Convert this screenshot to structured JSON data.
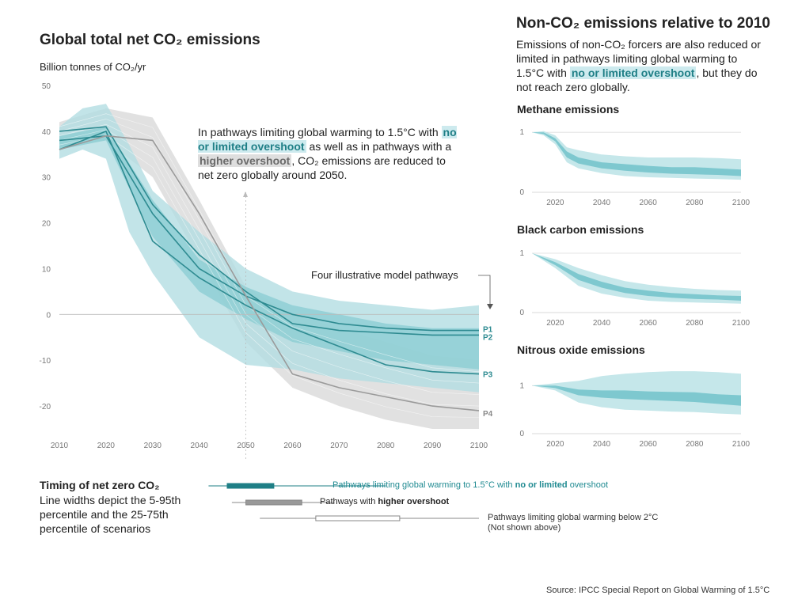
{
  "main": {
    "title": "Global total net CO₂ emissions",
    "ylabel": "Billion tonnes of CO₂/yr",
    "annotation": {
      "pre": "In pathways limiting global warming to 1.5°C with",
      "hl1": "no or limited overshoot",
      "mid": "as well as in pathways with a",
      "hl2": "higher overshoot",
      "post": ", CO₂ emissions are reduced to net zero globally around 2050."
    },
    "four_pathways": "Four illustrative model pathways"
  },
  "right": {
    "title": "Non-CO₂ emissions relative to 2010",
    "intro_pre": "Emissions of non-CO₂ forcers are also reduced or limited in pathways limiting global warming to 1.5°C with",
    "intro_hl": "no or limited overshoot",
    "intro_post": ", but they do not reach zero globally."
  },
  "timing": {
    "title": "Timing of net zero CO₂",
    "desc": "Line widths depict the 5-95th percentile and the 25-75th percentile of scenarios",
    "row1_pre": "Pathways limiting global warming to 1.5°C with",
    "row1_bold": "no or limited",
    "row1_post": "overshoot",
    "row2_pre": "Pathways with",
    "row2_bold": "higher overshoot",
    "row3_l1": "Pathways limiting global warming below 2°C",
    "row3_l2": "(Not shown above)"
  },
  "source": "Source: IPCC Special Report on Global Warming of 1.5°C",
  "colors": {
    "teal_band": "#a9d9de",
    "teal_dark": "#2c8a90",
    "grey_band": "#d9d9d9",
    "grey_line": "#9a9a9a"
  },
  "chart_data": [
    {
      "type": "line",
      "title": "Global total net CO₂ emissions",
      "ylabel": "Billion tonnes of CO₂/yr",
      "xlim": [
        2010,
        2100
      ],
      "ylim": [
        -25,
        50
      ],
      "x_ticks": [
        2010,
        2020,
        2030,
        2040,
        2050,
        2060,
        2070,
        2080,
        2090,
        2100
      ],
      "y_ticks": [
        -20,
        -10,
        0,
        10,
        20,
        30,
        40,
        50
      ],
      "bands": [
        {
          "group": "higher overshoot",
          "color": "#dcdcdc",
          "x": [
            2010,
            2020,
            2030,
            2040,
            2050,
            2060,
            2070,
            2080,
            2090,
            2100
          ],
          "upper": [
            42,
            45,
            43,
            25,
            6,
            0,
            -3,
            -6,
            -9,
            -10
          ],
          "lower": [
            36,
            38,
            30,
            12,
            -6,
            -16,
            -20,
            -23,
            -25,
            -25
          ]
        },
        {
          "group": "no or limited overshoot (5-95th)",
          "color": "#b3dde2",
          "x": [
            2010,
            2015,
            2020,
            2025,
            2030,
            2040,
            2050,
            2060,
            2070,
            2080,
            2090,
            2100
          ],
          "upper": [
            41,
            45,
            46,
            37,
            27,
            18,
            10,
            5,
            3,
            2,
            1,
            2
          ],
          "lower": [
            34,
            36,
            34,
            18,
            9,
            -5,
            -11,
            -12,
            -14,
            -15,
            -16,
            -17
          ]
        },
        {
          "group": "no or limited overshoot (25-75th)",
          "color": "#8ccdd3",
          "x": [
            2010,
            2020,
            2030,
            2040,
            2050,
            2060,
            2070,
            2080,
            2090,
            2100
          ],
          "upper": [
            39,
            41,
            25,
            12,
            6,
            2,
            0,
            -2,
            -3,
            -3
          ],
          "lower": [
            36,
            38,
            17,
            5,
            -1,
            -6,
            -8,
            -10,
            -11,
            -12
          ]
        }
      ],
      "series": [
        {
          "name": "P1",
          "color": "#2e8b91",
          "x": [
            2010,
            2020,
            2030,
            2040,
            2050,
            2060,
            2070,
            2080,
            2090,
            2100
          ],
          "y": [
            38,
            39,
            22,
            10,
            4,
            0,
            -2,
            -3,
            -3.5,
            -3.5
          ]
        },
        {
          "name": "P2",
          "color": "#2e8b91",
          "x": [
            2010,
            2020,
            2030,
            2040,
            2050,
            2060,
            2070,
            2080,
            2090,
            2100
          ],
          "y": [
            40,
            41,
            24,
            13,
            5,
            -2,
            -3.5,
            -4,
            -4.5,
            -4.5
          ]
        },
        {
          "name": "P3",
          "color": "#2e8b91",
          "x": [
            2010,
            2020,
            2030,
            2040,
            2050,
            2060,
            2070,
            2080,
            2090,
            2100
          ],
          "y": [
            36,
            40,
            16,
            8,
            2,
            -3,
            -7,
            -11,
            -12.5,
            -13
          ]
        },
        {
          "name": "P4",
          "color": "#9a9a9a",
          "x": [
            2010,
            2020,
            2030,
            2040,
            2050,
            2060,
            2070,
            2080,
            2090,
            2100
          ],
          "y": [
            36,
            39,
            38,
            22,
            4,
            -13,
            -16,
            -18,
            -20,
            -21
          ]
        }
      ]
    },
    {
      "type": "area",
      "title": "Methane emissions",
      "xlim": [
        2010,
        2100
      ],
      "ylim": [
        0,
        1.2
      ],
      "x_ticks": [
        2020,
        2040,
        2060,
        2080,
        2100
      ],
      "y_ticks": [
        0,
        1
      ],
      "x": [
        2010,
        2015,
        2020,
        2025,
        2030,
        2040,
        2050,
        2060,
        2070,
        2080,
        2090,
        2100
      ],
      "outer_upper": [
        1,
        1.02,
        0.95,
        0.75,
        0.7,
        0.63,
        0.6,
        0.58,
        0.58,
        0.58,
        0.57,
        0.55
      ],
      "outer_lower": [
        1,
        0.95,
        0.8,
        0.5,
        0.4,
        0.32,
        0.27,
        0.25,
        0.24,
        0.23,
        0.22,
        0.21
      ],
      "inner_upper": [
        1,
        1,
        0.9,
        0.68,
        0.58,
        0.5,
        0.47,
        0.44,
        0.42,
        0.42,
        0.4,
        0.38
      ],
      "inner_lower": [
        1,
        0.97,
        0.85,
        0.58,
        0.48,
        0.4,
        0.36,
        0.33,
        0.31,
        0.3,
        0.29,
        0.27
      ]
    },
    {
      "type": "area",
      "title": "Black carbon emissions",
      "xlim": [
        2010,
        2100
      ],
      "ylim": [
        0,
        1.2
      ],
      "x_ticks": [
        2020,
        2040,
        2060,
        2080,
        2100
      ],
      "y_ticks": [
        0,
        1
      ],
      "x": [
        2010,
        2020,
        2030,
        2040,
        2050,
        2060,
        2070,
        2080,
        2090,
        2100
      ],
      "outer_upper": [
        1,
        0.9,
        0.75,
        0.63,
        0.53,
        0.47,
        0.43,
        0.4,
        0.38,
        0.37
      ],
      "outer_lower": [
        1,
        0.75,
        0.45,
        0.32,
        0.25,
        0.2,
        0.18,
        0.17,
        0.16,
        0.15
      ],
      "inner_upper": [
        1,
        0.85,
        0.65,
        0.52,
        0.42,
        0.37,
        0.33,
        0.31,
        0.29,
        0.28
      ],
      "inner_lower": [
        1,
        0.8,
        0.55,
        0.42,
        0.33,
        0.28,
        0.25,
        0.23,
        0.22,
        0.2
      ]
    },
    {
      "type": "area",
      "title": "Nitrous oxide emissions",
      "xlim": [
        2010,
        2100
      ],
      "ylim": [
        0,
        1.5
      ],
      "x_ticks": [
        2020,
        2040,
        2060,
        2080,
        2100
      ],
      "y_ticks": [
        0,
        1
      ],
      "x": [
        2010,
        2020,
        2030,
        2040,
        2050,
        2060,
        2070,
        2080,
        2090,
        2100
      ],
      "outer_upper": [
        1,
        1.05,
        1.1,
        1.2,
        1.25,
        1.28,
        1.3,
        1.3,
        1.28,
        1.25
      ],
      "outer_lower": [
        1,
        0.9,
        0.65,
        0.55,
        0.5,
        0.48,
        0.46,
        0.45,
        0.42,
        0.4
      ],
      "inner_upper": [
        1,
        1,
        0.92,
        0.9,
        0.9,
        0.88,
        0.87,
        0.86,
        0.82,
        0.8
      ],
      "inner_lower": [
        1,
        0.95,
        0.8,
        0.75,
        0.72,
        0.7,
        0.68,
        0.66,
        0.62,
        0.58
      ]
    },
    {
      "type": "bar",
      "title": "Timing of net zero CO₂",
      "rows": [
        {
          "label": "no or limited overshoot",
          "p5": 2042,
          "p25": 2046,
          "p75": 2056,
          "p95": 2080
        },
        {
          "label": "higher overshoot",
          "p5": 2047,
          "p25": 2050,
          "p75": 2062,
          "p95": 2069
        },
        {
          "label": "below 2°C",
          "p5": 2053,
          "p25": 2065,
          "p75": 2083,
          "p95": 2100
        }
      ]
    }
  ]
}
